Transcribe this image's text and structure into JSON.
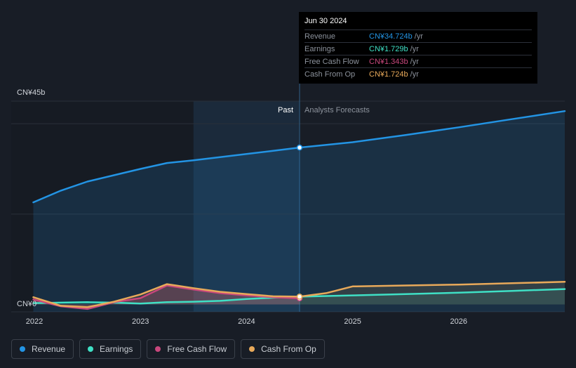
{
  "chart_data": {
    "type": "line",
    "title": "",
    "x_domain": [
      2022.0,
      2027.0
    ],
    "ylim": [
      0,
      45
    ],
    "y_tick_labels": [
      "CN¥45b",
      "CN¥0"
    ],
    "x_tick_labels": [
      "2022",
      "2023",
      "2024",
      "2025",
      "2026"
    ],
    "x_tick_values": [
      2022,
      2023,
      2024,
      2025,
      2026
    ],
    "divider_x": 2024.5,
    "highlight_start_x": 2023.5,
    "past_label": "Past",
    "forecast_label": "Analysts Forecasts",
    "series": [
      {
        "name": "Revenue",
        "color": "#2394e4",
        "x": [
          2021.99,
          2022.25,
          2022.5,
          2022.75,
          2023.0,
          2023.25,
          2023.5,
          2023.75,
          2024.0,
          2024.25,
          2024.5,
          2025.0,
          2025.5,
          2026.0,
          2026.5,
          2027.0
        ],
        "y": [
          22.6,
          25.2,
          27.2,
          28.6,
          30.0,
          31.3,
          31.9,
          32.6,
          33.3,
          34.0,
          34.72,
          35.9,
          37.5,
          39.2,
          41.0,
          42.8
        ]
      },
      {
        "name": "Earnings",
        "color": "#3fe0c5",
        "x": [
          2021.99,
          2022.25,
          2022.5,
          2022.75,
          2023.0,
          2023.25,
          2023.5,
          2023.75,
          2024.0,
          2024.25,
          2024.5,
          2025.0,
          2025.5,
          2026.0,
          2026.5,
          2027.0
        ],
        "y": [
          0.3,
          0.4,
          0.5,
          0.4,
          0.2,
          0.5,
          0.6,
          0.8,
          1.2,
          1.5,
          1.73,
          2.0,
          2.3,
          2.6,
          3.0,
          3.4
        ]
      },
      {
        "name": "Free Cash Flow",
        "color": "#c8477c",
        "x": [
          2021.99,
          2022.25,
          2022.5,
          2022.75,
          2023.0,
          2023.25,
          2023.5,
          2023.75,
          2024.0,
          2024.25,
          2024.5
        ],
        "y": [
          1.1,
          -0.4,
          -1.0,
          0.5,
          1.4,
          4.2,
          3.3,
          2.5,
          2.0,
          1.6,
          1.34
        ]
      },
      {
        "name": "Cash From Op",
        "color": "#e8a95a",
        "x": [
          2021.99,
          2022.25,
          2022.5,
          2022.75,
          2023.0,
          2023.25,
          2023.5,
          2023.75,
          2024.0,
          2024.25,
          2024.5,
          2024.75,
          2025.0,
          2025.5,
          2026.0,
          2026.5,
          2027.0
        ],
        "y": [
          1.6,
          -0.3,
          -0.6,
          0.6,
          2.2,
          4.5,
          3.6,
          2.8,
          2.3,
          1.8,
          1.72,
          2.5,
          4.0,
          4.2,
          4.4,
          4.7,
          5.0
        ]
      }
    ]
  },
  "tooltip": {
    "date": "Jun 30 2024",
    "rows": [
      {
        "label": "Revenue",
        "value": "CN¥34.724b",
        "unit": "/yr",
        "color": "#2394e4"
      },
      {
        "label": "Earnings",
        "value": "CN¥1.729b",
        "unit": "/yr",
        "color": "#3fe0c5"
      },
      {
        "label": "Free Cash Flow",
        "value": "CN¥1.343b",
        "unit": "/yr",
        "color": "#c8477c"
      },
      {
        "label": "Cash From Op",
        "value": "CN¥1.724b",
        "unit": "/yr",
        "color": "#e8a95a"
      }
    ]
  },
  "legend": {
    "items": [
      {
        "label": "Revenue",
        "color": "#2394e4"
      },
      {
        "label": "Earnings",
        "color": "#3fe0c5"
      },
      {
        "label": "Free Cash Flow",
        "color": "#c8477c"
      },
      {
        "label": "Cash From Op",
        "color": "#e8a95a"
      }
    ]
  }
}
